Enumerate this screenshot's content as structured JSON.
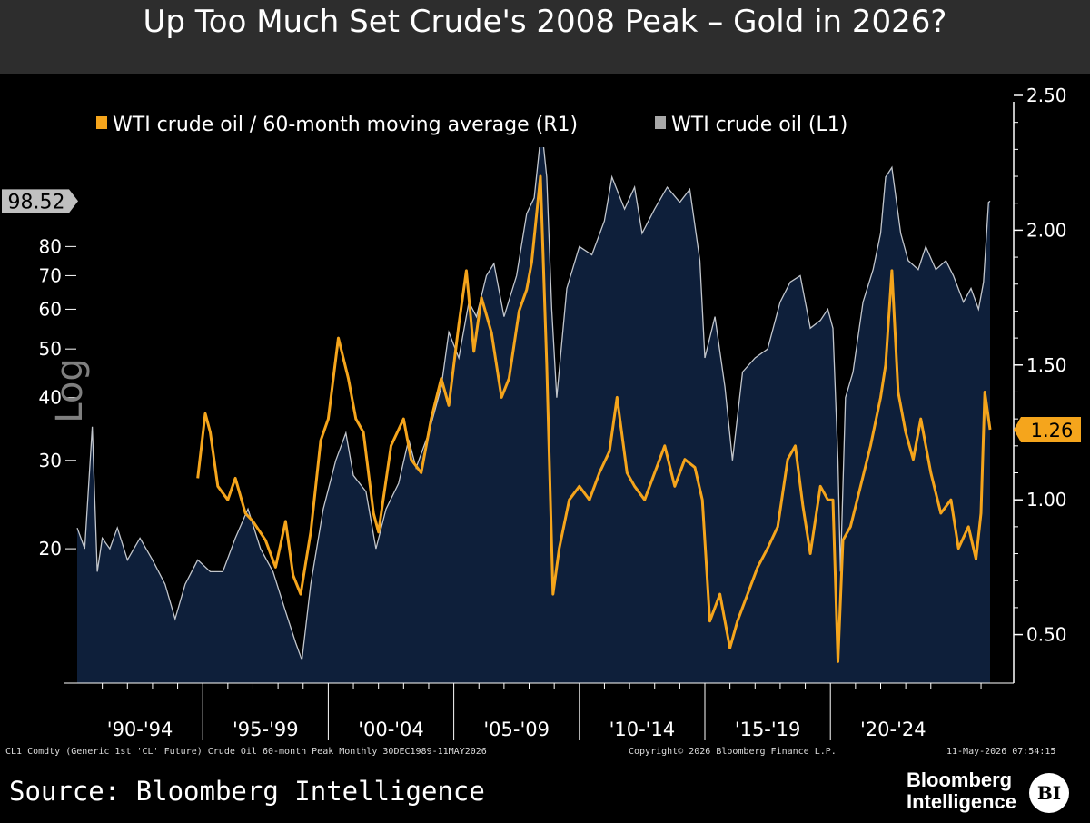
{
  "header": {
    "title": "Up Too Much Set Crude's 2008 Peak – Gold in 2026?"
  },
  "footer": {
    "meta_left": "CL1 Comdty (Generic 1st 'CL' Future) Crude Oil 60-month Peak Monthly 30DEC1989-11MAY2026",
    "meta_center": "Copyright© 2026 Bloomberg Finance L.P.",
    "meta_right": "11-May-2026 07:54:15",
    "source": "Source: Bloomberg Intelligence",
    "brand_line1": "Bloomberg",
    "brand_line2": "Intelligence",
    "brand_logo": "BI"
  },
  "colors": {
    "background": "#000000",
    "header_bg": "#2d2d2d",
    "area_fill": "#0e1f3a",
    "price_line": "#c2c6cc",
    "ratio_line": "#f5a51c",
    "label_last_price_bg": "#c0c0c0",
    "label_last_ratio_bg": "#f5a51c"
  },
  "chart_data": {
    "type": "line",
    "x_label_scale": "Log",
    "x_range": [
      1990.0,
      2026.36
    ],
    "x_tick_labels": [
      "'90-'94",
      "'95-'99",
      "'00-'04",
      "'05-'09",
      "'10-'14",
      "'15-'19",
      "'20-'24"
    ],
    "x_tick_groups": [
      [
        1990,
        1995
      ],
      [
        1995,
        2000
      ],
      [
        2000,
        2005
      ],
      [
        2005,
        2010
      ],
      [
        2010,
        2015
      ],
      [
        2015,
        2020
      ],
      [
        2020,
        2025
      ]
    ],
    "left_axis": {
      "scale": "log",
      "range": [
        10.8,
        160
      ],
      "ticks": [
        20,
        30,
        40,
        50,
        60,
        70,
        80
      ]
    },
    "right_axis": {
      "scale": "linear",
      "range": [
        0.32,
        2.5
      ],
      "ticks": [
        0.5,
        1.0,
        1.5,
        2.0,
        2.5
      ],
      "tick_labels": [
        "0.50",
        "1.00",
        "1.50",
        "2.00",
        "2.50"
      ]
    },
    "legend": {
      "position": "top-left",
      "entries": [
        "WTI crude oil / 60-month moving average (R1)",
        "WTI crude oil (L1)"
      ]
    },
    "last_values": {
      "price": "98.52",
      "ratio": "1.26"
    },
    "series": [
      {
        "name": "WTI crude oil (L1)",
        "axis": "left",
        "style": "area",
        "x": [
          1990.0,
          1990.3,
          1990.6,
          1990.8,
          1991.0,
          1991.3,
          1991.6,
          1992.0,
          1992.5,
          1993.0,
          1993.5,
          1993.9,
          1994.3,
          1994.8,
          1995.3,
          1995.8,
          1996.3,
          1996.8,
          1997.3,
          1997.8,
          1998.3,
          1998.7,
          1998.95,
          1999.3,
          1999.8,
          2000.3,
          2000.7,
          2001.0,
          2001.5,
          2001.9,
          2002.3,
          2002.8,
          2003.2,
          2003.5,
          2004.0,
          2004.5,
          2004.8,
          2005.2,
          2005.6,
          2005.9,
          2006.3,
          2006.6,
          2007.0,
          2007.5,
          2007.9,
          2008.2,
          2008.5,
          2008.7,
          2008.9,
          2009.1,
          2009.5,
          2010.0,
          2010.5,
          2011.0,
          2011.3,
          2011.8,
          2012.2,
          2012.5,
          2013.0,
          2013.5,
          2014.0,
          2014.4,
          2014.8,
          2015.0,
          2015.4,
          2015.8,
          2016.1,
          2016.5,
          2017.0,
          2017.5,
          2018.0,
          2018.4,
          2018.8,
          2019.2,
          2019.6,
          2019.9,
          2020.1,
          2020.3,
          2020.4,
          2020.6,
          2020.9,
          2021.3,
          2021.7,
          2022.0,
          2022.2,
          2022.45,
          2022.8,
          2023.1,
          2023.5,
          2023.8,
          2024.2,
          2024.6,
          2024.9,
          2025.3,
          2025.6,
          2025.9,
          2026.1,
          2026.3,
          2026.36
        ],
        "y": [
          22,
          20,
          35,
          18,
          21,
          20,
          22,
          19,
          21,
          19,
          17,
          14.5,
          17,
          19,
          18,
          18,
          21,
          24,
          20,
          18,
          15,
          13,
          12,
          17,
          24,
          30,
          34,
          28,
          26,
          20,
          24,
          27,
          33,
          29,
          34,
          42,
          54,
          48,
          62,
          58,
          70,
          74,
          58,
          70,
          93,
          100,
          138,
          110,
          60,
          40,
          66,
          80,
          77,
          90,
          110,
          95,
          105,
          85,
          95,
          105,
          98,
          104,
          75,
          48,
          58,
          42,
          30,
          45,
          48,
          50,
          62,
          68,
          70,
          55,
          57,
          60,
          55,
          30,
          18,
          40,
          45,
          62,
          72,
          85,
          110,
          115,
          85,
          75,
          72,
          80,
          72,
          75,
          70,
          62,
          66,
          60,
          68,
          98,
          98.52
        ]
      },
      {
        "name": "WTI crude oil / 60-month moving average (R1)",
        "axis": "right",
        "style": "line",
        "x": [
          1994.8,
          1995.1,
          1995.3,
          1995.6,
          1996.0,
          1996.3,
          1996.7,
          1997.0,
          1997.5,
          1997.9,
          1998.3,
          1998.6,
          1998.9,
          1999.3,
          1999.7,
          2000.0,
          2000.4,
          2000.8,
          2001.1,
          2001.4,
          2001.8,
          2002.0,
          2002.5,
          2003.0,
          2003.3,
          2003.7,
          2004.1,
          2004.5,
          2004.8,
          2005.2,
          2005.5,
          2005.8,
          2006.1,
          2006.5,
          2006.9,
          2007.2,
          2007.6,
          2007.9,
          2008.1,
          2008.45,
          2008.7,
          2008.95,
          2009.2,
          2009.6,
          2010.0,
          2010.4,
          2010.8,
          2011.2,
          2011.5,
          2011.9,
          2012.2,
          2012.6,
          2013.0,
          2013.4,
          2013.8,
          2014.2,
          2014.6,
          2014.9,
          2015.2,
          2015.6,
          2016.0,
          2016.3,
          2016.7,
          2017.1,
          2017.5,
          2017.9,
          2018.3,
          2018.6,
          2018.9,
          2019.2,
          2019.6,
          2019.9,
          2020.1,
          2020.3,
          2020.5,
          2020.8,
          2021.2,
          2021.6,
          2022.0,
          2022.2,
          2022.45,
          2022.7,
          2023.0,
          2023.3,
          2023.6,
          2024.0,
          2024.4,
          2024.8,
          2025.1,
          2025.5,
          2025.8,
          2026.0,
          2026.15,
          2026.36
        ],
        "y": [
          1.08,
          1.32,
          1.25,
          1.05,
          1.0,
          1.08,
          0.95,
          0.92,
          0.85,
          0.75,
          0.92,
          0.72,
          0.65,
          0.88,
          1.22,
          1.3,
          1.6,
          1.45,
          1.3,
          1.25,
          0.95,
          0.88,
          1.2,
          1.3,
          1.15,
          1.1,
          1.3,
          1.45,
          1.35,
          1.65,
          1.85,
          1.55,
          1.75,
          1.62,
          1.38,
          1.45,
          1.7,
          1.78,
          1.88,
          2.2,
          1.5,
          0.65,
          0.82,
          1.0,
          1.05,
          1.0,
          1.1,
          1.18,
          1.38,
          1.1,
          1.05,
          1.0,
          1.1,
          1.2,
          1.05,
          1.15,
          1.12,
          1.0,
          0.55,
          0.65,
          0.45,
          0.55,
          0.65,
          0.75,
          0.82,
          0.9,
          1.15,
          1.2,
          0.98,
          0.8,
          1.05,
          1.0,
          1.0,
          0.4,
          0.85,
          0.9,
          1.05,
          1.2,
          1.38,
          1.5,
          1.85,
          1.4,
          1.25,
          1.15,
          1.3,
          1.1,
          0.95,
          1.0,
          0.82,
          0.9,
          0.78,
          0.95,
          1.4,
          1.26
        ]
      }
    ]
  }
}
